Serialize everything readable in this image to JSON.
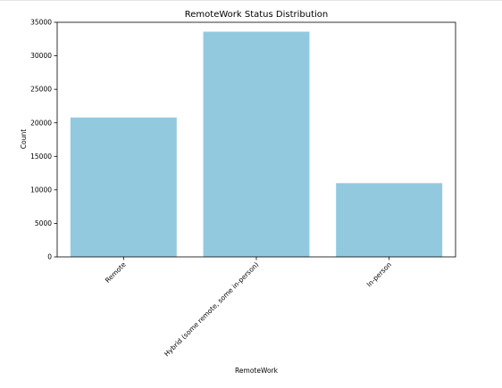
{
  "chart_data": {
    "type": "bar",
    "title": "RemoteWork Status Distribution",
    "xlabel": "RemoteWork",
    "ylabel": "Count",
    "categories": [
      "Remote",
      "Hybrid (some remote, some in-person)",
      "In-person"
    ],
    "values": [
      20800,
      33600,
      11000
    ],
    "ylim": [
      0,
      35000
    ],
    "yticks": [
      0,
      5000,
      10000,
      15000,
      20000,
      25000,
      30000,
      35000
    ],
    "grid": false,
    "legend": "none",
    "bar_color": "#92c9df"
  }
}
